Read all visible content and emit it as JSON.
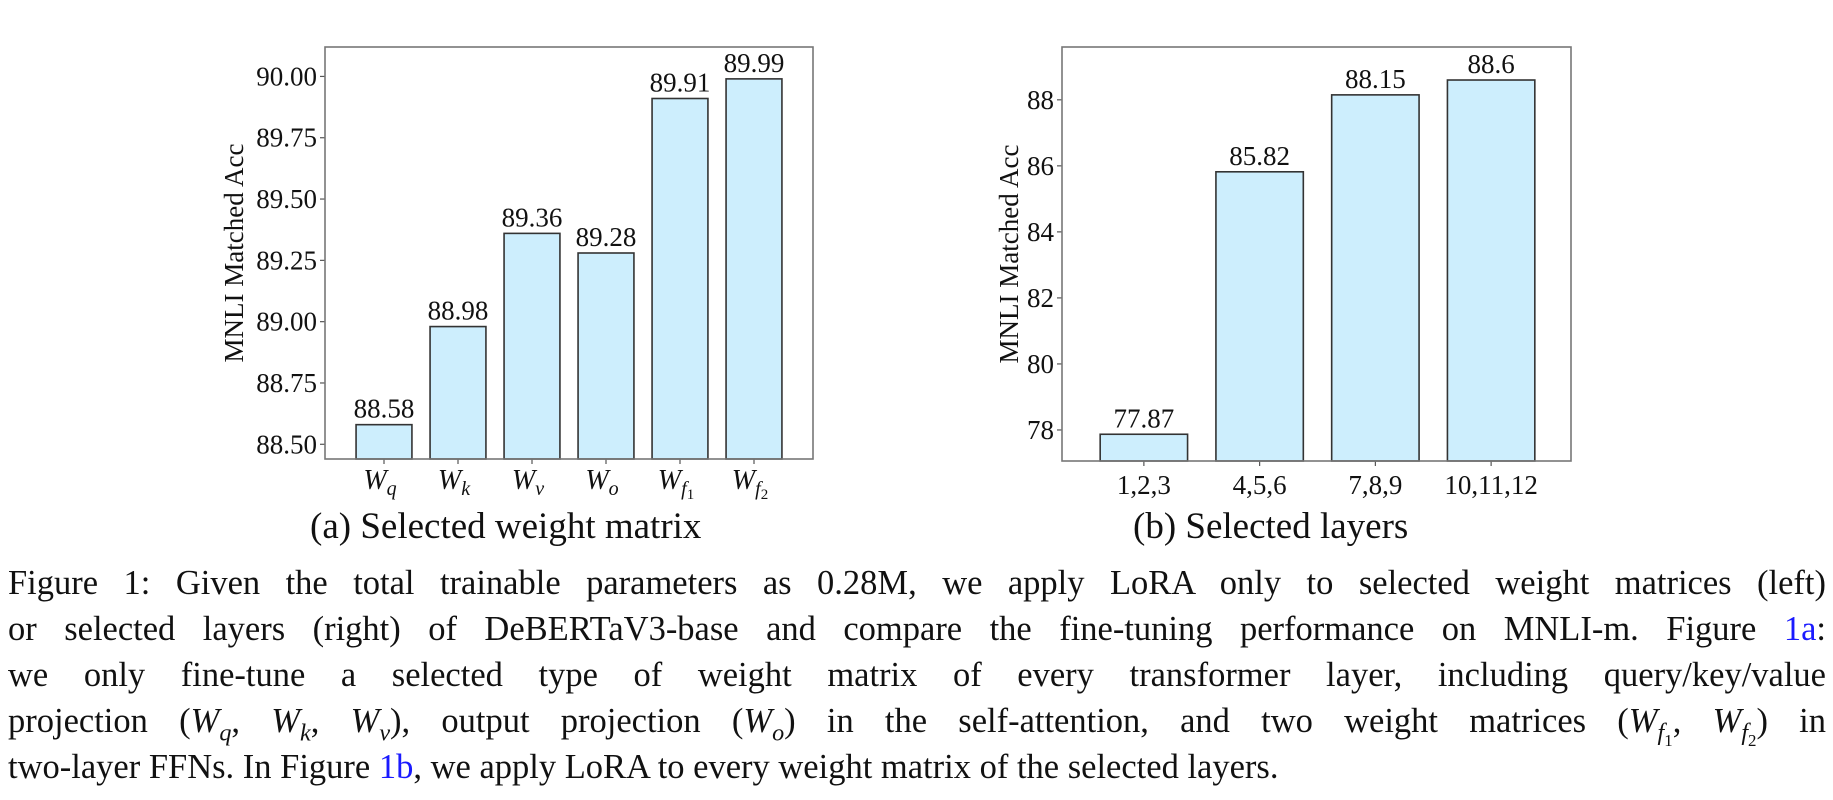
{
  "chart_data": [
    {
      "type": "bar",
      "id": "a",
      "title": "",
      "subcaption": "(a) Selected weight matrix",
      "xlabel": "",
      "ylabel": "MNLI Matched Acc",
      "categories": [
        {
          "base": "W",
          "sub": "q",
          "subsub": ""
        },
        {
          "base": "W",
          "sub": "k",
          "subsub": ""
        },
        {
          "base": "W",
          "sub": "v",
          "subsub": ""
        },
        {
          "base": "W",
          "sub": "o",
          "subsub": ""
        },
        {
          "base": "W",
          "sub": "f",
          "subsub": "1"
        },
        {
          "base": "W",
          "sub": "f",
          "subsub": "2"
        }
      ],
      "category_names": [
        "Wq",
        "Wk",
        "Wv",
        "Wo",
        "Wf1",
        "Wf2"
      ],
      "values": [
        88.58,
        88.98,
        89.36,
        89.28,
        89.91,
        89.99
      ],
      "value_labels": [
        "88.58",
        "88.98",
        "89.36",
        "89.28",
        "89.91",
        "89.99"
      ],
      "yticks": [
        88.5,
        88.75,
        89.0,
        89.25,
        89.5,
        89.75,
        90.0
      ],
      "ytick_labels": [
        "88.50",
        "88.75",
        "89.00",
        "89.25",
        "89.50",
        "89.75",
        "90.00"
      ],
      "ylim": [
        88.44,
        90.12
      ],
      "grid": false,
      "bar_color": "#cdeefd",
      "edge_color": "#333333"
    },
    {
      "type": "bar",
      "id": "b",
      "title": "",
      "subcaption": "(b) Selected layers",
      "xlabel": "",
      "ylabel": "MNLI Matched Acc",
      "categories": [
        "1,2,3",
        "4,5,6",
        "7,8,9",
        "10,11,12"
      ],
      "values": [
        77.87,
        85.82,
        88.15,
        88.6
      ],
      "value_labels": [
        "77.87",
        "85.82",
        "88.15",
        "88.6"
      ],
      "yticks": [
        78,
        80,
        82,
        84,
        86,
        88
      ],
      "ytick_labels": [
        "78",
        "80",
        "82",
        "84",
        "86",
        "88"
      ],
      "ylim": [
        77.06,
        89.6
      ],
      "grid": false,
      "bar_color": "#cdeefd",
      "edge_color": "#333333"
    }
  ],
  "caption": {
    "label": "Figure 1:",
    "line1": "Given the total trainable parameters as 0.28M, we apply LoRA only to selected weight matrices (left)",
    "line2_pre": "or selected layers (right) of DeBERTaV3-base and compare the fine-tuning performance on MNLI-m. Figure ",
    "link_1a": "1a",
    "line2_post": ":",
    "line3": "we only fine-tune a selected type of weight matrix of every transformer layer, including query/key/value",
    "line4_a": "projection (",
    "line4_b": "), output projection (",
    "line4_c": ") in the self-attention, and two weight matrices (",
    "line4_d": ") in",
    "line5_pre": "two-layer FFNs. In Figure ",
    "link_1b": "1b",
    "line5_post": ", we apply LoRA to every weight matrix of the selected layers.",
    "link_color": "#1a1aff"
  }
}
